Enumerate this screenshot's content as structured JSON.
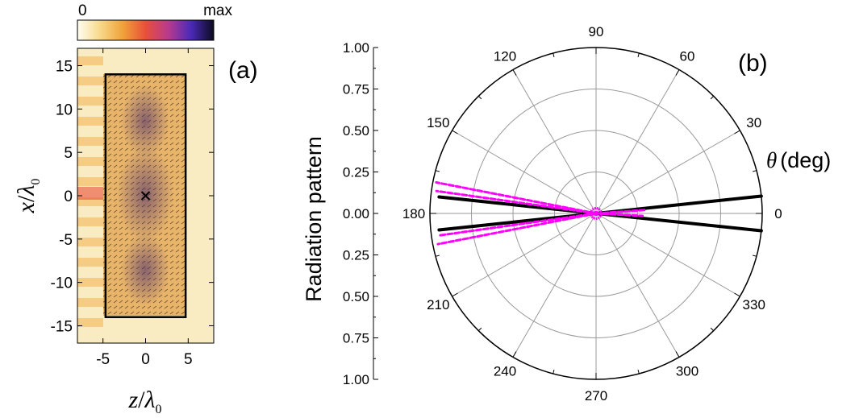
{
  "chart_data": [
    {
      "type": "heatmap",
      "panel_label": "(a)",
      "colorbar": {
        "min_label": "0",
        "max_label": "max",
        "colors": [
          "#fffef2",
          "#f7d98a",
          "#f0a23a",
          "#e8503a",
          "#b83a8e",
          "#4a2ab8",
          "#0a0a1e"
        ]
      },
      "xlabel": {
        "var": "z",
        "sub": "0",
        "sym": "λ"
      },
      "ylabel": {
        "var": "x",
        "sub": "0",
        "sym": "λ"
      },
      "xlim": [
        -8,
        8
      ],
      "ylim": [
        -17,
        17
      ],
      "xticks": [
        -5,
        0,
        5
      ],
      "xtick_labels": [
        "-5",
        "0",
        "5"
      ],
      "yticks": [
        15,
        10,
        5,
        0,
        -5,
        -10,
        -15
      ],
      "ytick_labels": [
        "15",
        "10",
        "5",
        "0",
        "-5",
        "-10",
        "-15"
      ],
      "region_rect": {
        "z": [
          -4.7,
          4.7
        ],
        "x": [
          -14,
          14
        ]
      },
      "source_marker": {
        "z": 0,
        "x": 0
      }
    },
    {
      "type": "polar",
      "panel_label": "(b)",
      "ylabel": "Radiation pattern",
      "theta_label": {
        "sym": "θ",
        "unit": "(deg)"
      },
      "angle_labels": [
        "0",
        "30",
        "60",
        "90",
        "120",
        "150",
        "180",
        "210",
        "240",
        "270",
        "300",
        "330"
      ],
      "angles_deg": [
        0,
        30,
        60,
        90,
        120,
        150,
        180,
        210,
        240,
        270,
        300,
        330
      ],
      "radial_max": 1.0,
      "radial_rings": [
        0.25,
        0.5,
        0.75,
        1.0
      ],
      "radial_axis_top_labels": [
        "1.00",
        "0.75",
        "0.50",
        "0.25",
        "0.00"
      ],
      "radial_axis_bottom_labels": [
        "0.25",
        "0.50",
        "0.75",
        "1.00"
      ],
      "series": [
        {
          "style": "solid",
          "color": "#000000",
          "lobes": [
            {
              "angle_deg": 6,
              "value": 1.0
            },
            {
              "angle_deg": -6,
              "value": 1.0
            },
            {
              "angle_deg": 174,
              "value": 0.95
            },
            {
              "angle_deg": 186,
              "value": 0.95
            }
          ]
        },
        {
          "style": "dashed",
          "color": "#ff00ff",
          "lobes": [
            {
              "angle_deg": 169,
              "value": 0.98
            },
            {
              "angle_deg": 172,
              "value": 0.97
            },
            {
              "angle_deg": 188,
              "value": 0.96
            },
            {
              "angle_deg": 191,
              "value": 0.97
            },
            {
              "angle_deg": 4,
              "value": 0.3
            },
            {
              "angle_deg": -3,
              "value": 0.28
            }
          ]
        }
      ]
    }
  ]
}
